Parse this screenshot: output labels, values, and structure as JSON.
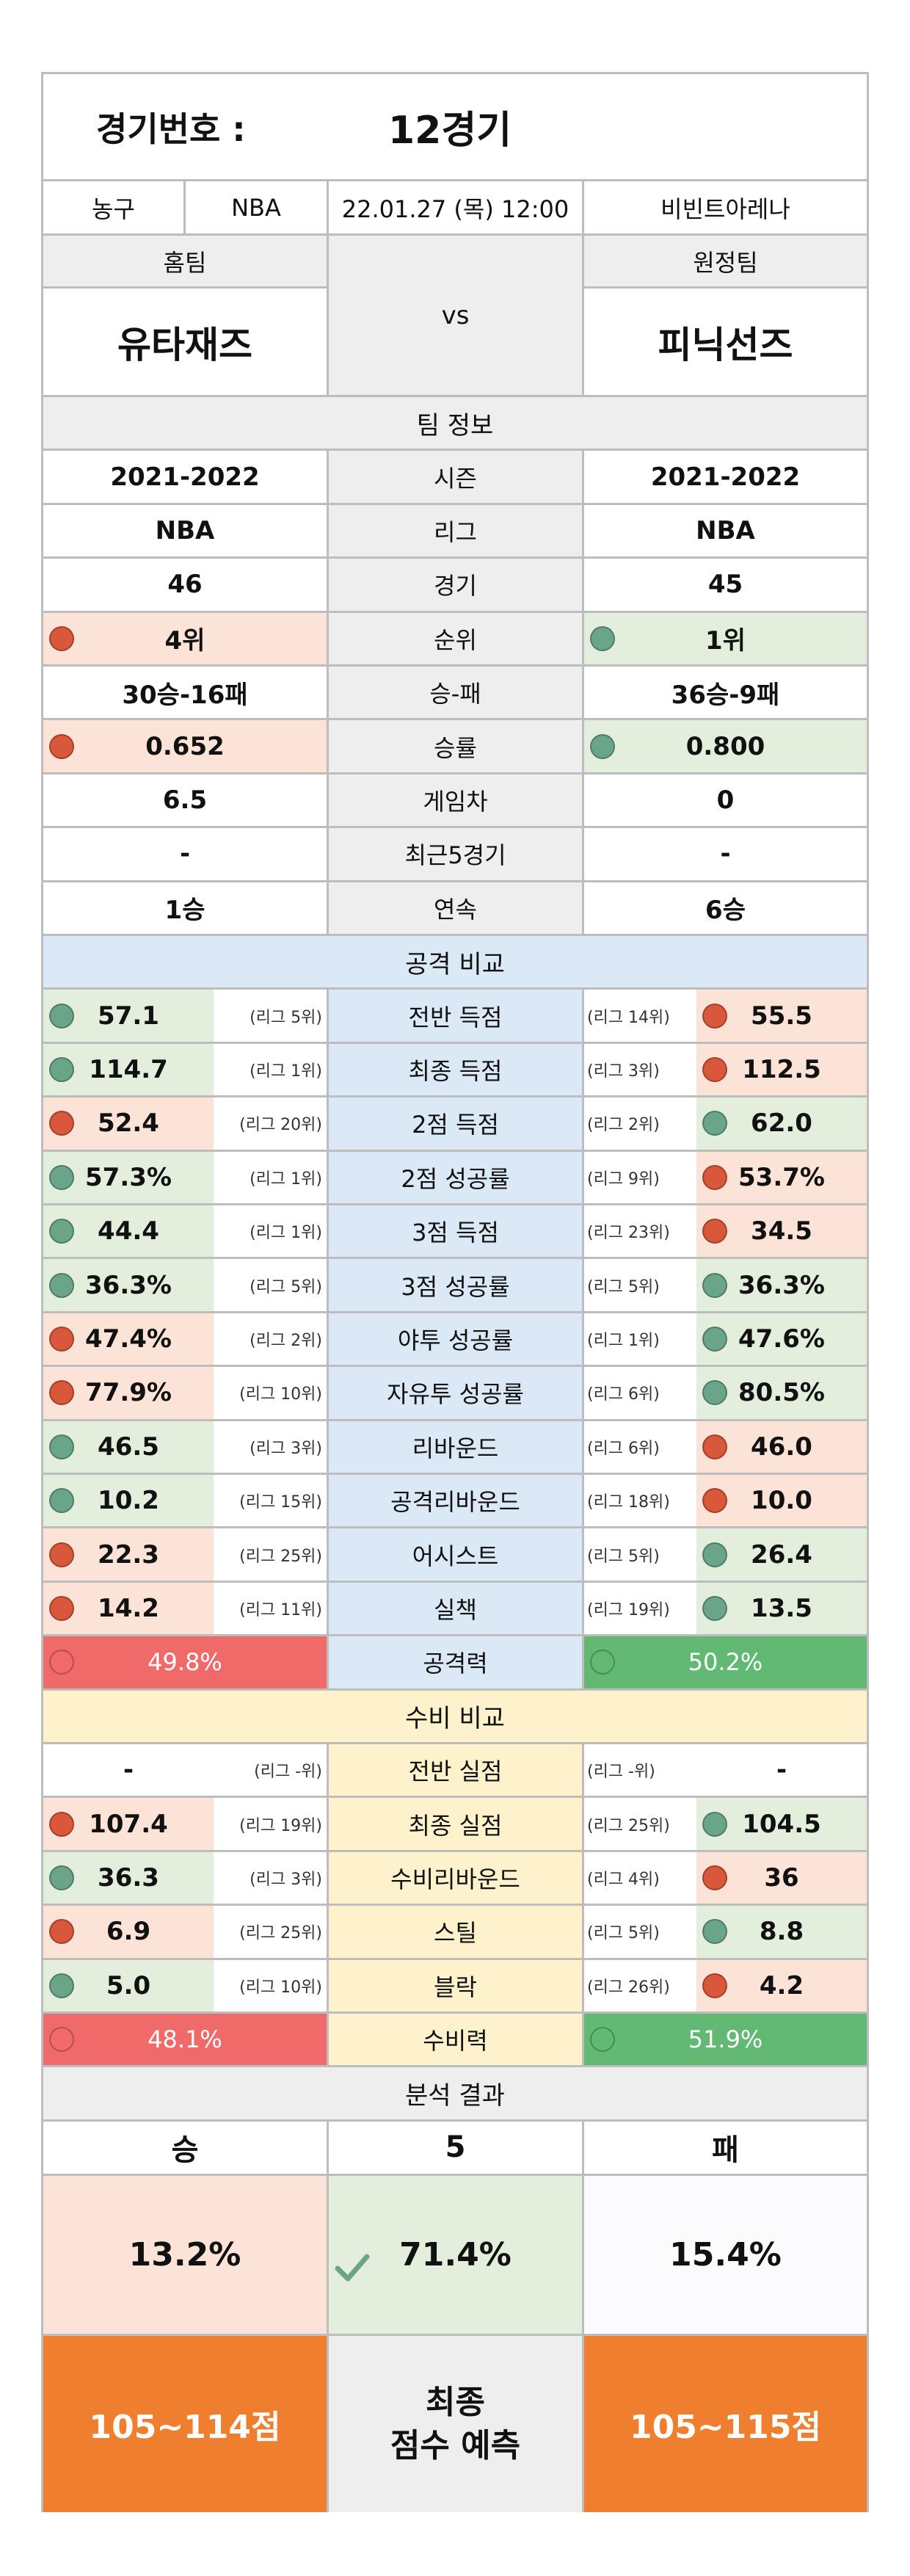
{
  "header": {
    "label": "경기번호 :",
    "game": "12경기"
  },
  "info": {
    "sport": "농구",
    "league": "NBA",
    "datetime": "22.01.27 (목) 12:00",
    "venue": "비빈트아레나"
  },
  "teams": {
    "home_label": "홈팀",
    "away_label": "원정팀",
    "home": "유타재즈",
    "away": "피닉선즈",
    "vs": "vs"
  },
  "team_info": {
    "title": "팀 정보",
    "rows": [
      {
        "label": "시즌",
        "home": "2021-2022",
        "away": "2021-2022"
      },
      {
        "label": "리그",
        "home": "NBA",
        "away": "NBA"
      },
      {
        "label": "경기",
        "home": "46",
        "away": "45"
      },
      {
        "label": "순위",
        "home": "4위",
        "away": "1위",
        "home_dot": "red",
        "away_dot": "green",
        "home_bg": "#fce3d7",
        "away_bg": "#e3efdc"
      },
      {
        "label": "승-패",
        "home": "30승-16패",
        "away": "36승-9패"
      },
      {
        "label": "승률",
        "home": "0.652",
        "away": "0.800",
        "home_dot": "red",
        "away_dot": "green",
        "home_bg": "#fce3d7",
        "away_bg": "#e3efdc"
      },
      {
        "label": "게임차",
        "home": "6.5",
        "away": "0"
      },
      {
        "label": "최근5경기",
        "home": "-",
        "away": "-"
      },
      {
        "label": "연속",
        "home": "1승",
        "away": "6승"
      }
    ]
  },
  "offense": {
    "title": "공격 비교",
    "rows": [
      {
        "label": "전반 득점",
        "home": "57.1",
        "home_rank": "(리그 5위)",
        "away": "55.5",
        "away_rank": "(리그 14위)",
        "home_dot": "green",
        "away_dot": "red"
      },
      {
        "label": "최종 득점",
        "home": "114.7",
        "home_rank": "(리그 1위)",
        "away": "112.5",
        "away_rank": "(리그 3위)",
        "home_dot": "green",
        "away_dot": "red"
      },
      {
        "label": "2점 득점",
        "home": "52.4",
        "home_rank": "(리그 20위)",
        "away": "62.0",
        "away_rank": "(리그 2위)",
        "home_dot": "red",
        "away_dot": "green"
      },
      {
        "label": "2점 성공률",
        "home": "57.3%",
        "home_rank": "(리그 1위)",
        "away": "53.7%",
        "away_rank": "(리그 9위)",
        "home_dot": "green",
        "away_dot": "red"
      },
      {
        "label": "3점 득점",
        "home": "44.4",
        "home_rank": "(리그 1위)",
        "away": "34.5",
        "away_rank": "(리그 23위)",
        "home_dot": "green",
        "away_dot": "red"
      },
      {
        "label": "3점 성공률",
        "home": "36.3%",
        "home_rank": "(리그 5위)",
        "away": "36.3%",
        "away_rank": "(리그 5위)",
        "home_dot": "green",
        "away_dot": "green"
      },
      {
        "label": "야투 성공률",
        "home": "47.4%",
        "home_rank": "(리그 2위)",
        "away": "47.6%",
        "away_rank": "(리그 1위)",
        "home_dot": "red",
        "away_dot": "green"
      },
      {
        "label": "자유투 성공률",
        "home": "77.9%",
        "home_rank": "(리그 10위)",
        "away": "80.5%",
        "away_rank": "(리그 6위)",
        "home_dot": "red",
        "away_dot": "green"
      },
      {
        "label": "리바운드",
        "home": "46.5",
        "home_rank": "(리그 3위)",
        "away": "46.0",
        "away_rank": "(리그 6위)",
        "home_dot": "green",
        "away_dot": "red"
      },
      {
        "label": "공격리바운드",
        "home": "10.2",
        "home_rank": "(리그 15위)",
        "away": "10.0",
        "away_rank": "(리그 18위)",
        "home_dot": "green",
        "away_dot": "red"
      },
      {
        "label": "어시스트",
        "home": "22.3",
        "home_rank": "(리그 25위)",
        "away": "26.4",
        "away_rank": "(리그 5위)",
        "home_dot": "red",
        "away_dot": "green"
      },
      {
        "label": "실책",
        "home": "14.2",
        "home_rank": "(리그 11위)",
        "away": "13.5",
        "away_rank": "(리그 19위)",
        "home_dot": "red",
        "away_dot": "green"
      }
    ],
    "power": {
      "label": "공격력",
      "home": "49.8%",
      "away": "50.2%"
    }
  },
  "defense": {
    "title": "수비 비교",
    "rows": [
      {
        "label": "전반 실점",
        "home": "-",
        "home_rank": "(리그 -위)",
        "away": "-",
        "away_rank": "(리그 -위)",
        "home_dot": "",
        "away_dot": ""
      },
      {
        "label": "최종 실점",
        "home": "107.4",
        "home_rank": "(리그 19위)",
        "away": "104.5",
        "away_rank": "(리그 25위)",
        "home_dot": "red",
        "away_dot": "green"
      },
      {
        "label": "수비리바운드",
        "home": "36.3",
        "home_rank": "(리그 3위)",
        "away": "36",
        "away_rank": "(리그 4위)",
        "home_dot": "green",
        "away_dot": "red"
      },
      {
        "label": "스틸",
        "home": "6.9",
        "home_rank": "(리그 25위)",
        "away": "8.8",
        "away_rank": "(리그 5위)",
        "home_dot": "red",
        "away_dot": "green"
      },
      {
        "label": "블락",
        "home": "5.0",
        "home_rank": "(리그 10위)",
        "away": "4.2",
        "away_rank": "(리그 26위)",
        "home_dot": "green",
        "away_dot": "red"
      }
    ],
    "power": {
      "label": "수비력",
      "home": "48.1%",
      "away": "51.9%"
    }
  },
  "result": {
    "title": "분석 결과",
    "win": "승",
    "draw": "5",
    "lose": "패",
    "win_pct": "13.2%",
    "draw_pct": "71.4%",
    "lose_pct": "15.4%",
    "check_icon": "check-icon",
    "home_score": "105~114점",
    "final_label_1": "최종",
    "final_label_2": "점수 예측",
    "away_score": "105~115점"
  },
  "colors": {
    "red_dot": "#d9573a",
    "green_dot": "#6aa58a",
    "pink": "#fce3d7",
    "light_green": "#e3efdc",
    "power_red": "#f06a6a",
    "power_green": "#62b974",
    "orange": "#ef7f2f"
  }
}
